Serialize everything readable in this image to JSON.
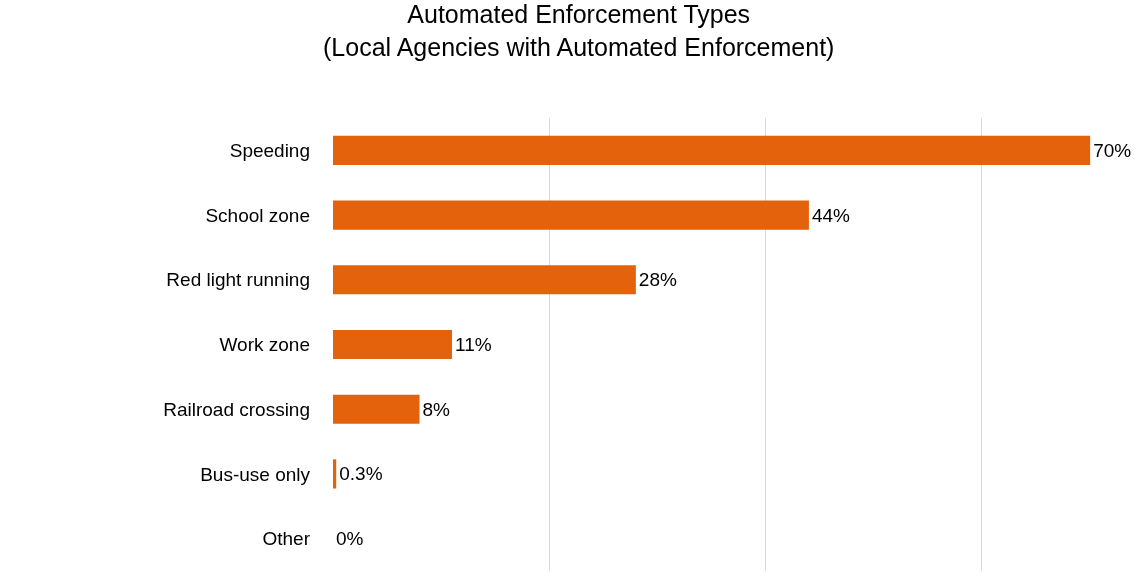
{
  "chart_data": {
    "type": "bar",
    "orientation": "horizontal",
    "title": "Automated Enforcement Types\n(Local Agencies with Automated Enforcement)",
    "categories": [
      "Speeding",
      "School zone",
      "Red light running",
      "Work zone",
      "Railroad crossing",
      "Bus-use only",
      "Other"
    ],
    "values": [
      70,
      44,
      28,
      11,
      8,
      0.3,
      0
    ],
    "value_labels": [
      "70%",
      "44%",
      "28%",
      "11%",
      "8%",
      "0.3%",
      "0%"
    ],
    "color": "#e4620c",
    "grid": "x",
    "tick_labels": "y",
    "legend": false
  }
}
